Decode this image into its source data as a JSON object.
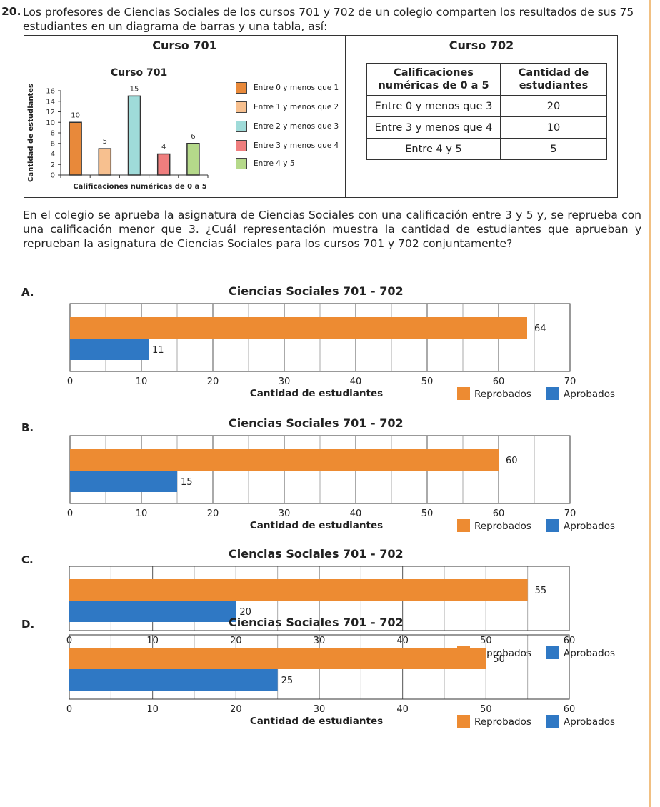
{
  "question": {
    "number": "20.",
    "intro": "Los profesores de Ciencias Sociales de los cursos 701 y 702 de un colegio comparten los resultados de sus 75 estudiantes en un diagrama de barras y una tabla, así:",
    "paragraph": "En el colegio se aprueba la asignatura de Ciencias Sociales con una calificación entre 3 y 5 y, se reprueba con una calificación menor que 3. ¿Cuál representación muestra la cantidad de estudiantes que aprueban y reprueban la asignatura de Ciencias Sociales para los cursos 701 y 702 conjuntamente?"
  },
  "curso701": {
    "header": "Curso 701",
    "legend": [
      {
        "label": "Entre 0 y menos que 1",
        "color": "#e8893a"
      },
      {
        "label": "Entre 1 y menos que 2",
        "color": "#f7c08f"
      },
      {
        "label": "Entre 2 y menos que 3",
        "color": "#9fdbd9"
      },
      {
        "label": "Entre 3 y menos que 4",
        "color": "#ef7e7e"
      },
      {
        "label": "Entre 4 y 5",
        "color": "#b5d98a"
      }
    ]
  },
  "curso702": {
    "header": "Curso 702",
    "col1": "Calificaciones numéricas de 0 a 5",
    "col2": "Cantidad de estudiantes",
    "rows": [
      {
        "range": "Entre 0 y menos que 3",
        "count": "20"
      },
      {
        "range": "Entre 3 y menos que 4",
        "count": "10"
      },
      {
        "range": "Entre 4 y 5",
        "count": "5"
      }
    ]
  },
  "legend_labels": {
    "reprobados": "Reprobados",
    "aprobados": "Aprobados"
  },
  "colors": {
    "reprobados": "#ed8b32",
    "aprobados": "#2f78c4"
  },
  "chart_data": [
    {
      "type": "bar",
      "title": "Curso 701",
      "xlabel": "Calificaciones numéricas de 0 a 5",
      "ylabel": "Cantidad de estudiantes",
      "categories": [
        "Entre 0 y menos que 1",
        "Entre 1 y menos que 2",
        "Entre 2 y menos que 3",
        "Entre 3 y menos que 4",
        "Entre 4 y 5"
      ],
      "values": [
        10,
        5,
        15,
        4,
        6
      ],
      "ylim": [
        0,
        16
      ],
      "yticks": [
        0,
        2,
        4,
        6,
        8,
        10,
        12,
        14,
        16
      ]
    },
    {
      "option": "A.",
      "type": "bar",
      "orientation": "horizontal",
      "title": "Ciencias Sociales 701 - 702",
      "xlabel": "Cantidad de estudiantes",
      "series": [
        {
          "name": "Reprobados",
          "value": 64
        },
        {
          "name": "Aprobados",
          "value": 11
        }
      ],
      "xlim": [
        0,
        70
      ],
      "xticks": [
        0,
        10,
        20,
        30,
        40,
        50,
        60,
        70
      ]
    },
    {
      "option": "B.",
      "type": "bar",
      "orientation": "horizontal",
      "title": "Ciencias Sociales 701 - 702",
      "xlabel": "Cantidad de estudiantes",
      "series": [
        {
          "name": "Reprobados",
          "value": 60
        },
        {
          "name": "Aprobados",
          "value": 15
        }
      ],
      "xlim": [
        0,
        70
      ],
      "xticks": [
        0,
        10,
        20,
        30,
        40,
        50,
        60,
        70
      ]
    },
    {
      "option": "C.",
      "type": "bar",
      "orientation": "horizontal",
      "title": "Ciencias Sociales 701 - 702",
      "xlabel": "Cantidad de estudiantes",
      "series": [
        {
          "name": "Reprobados",
          "value": 55
        },
        {
          "name": "Aprobados",
          "value": 20
        }
      ],
      "xlim": [
        0,
        60
      ],
      "xticks": [
        0,
        10,
        20,
        30,
        40,
        50,
        60
      ]
    },
    {
      "option": "D.",
      "type": "bar",
      "orientation": "horizontal",
      "title": "Ciencias Sociales 701 - 702",
      "xlabel": "Cantidad de estudiantes",
      "series": [
        {
          "name": "Reprobados",
          "value": 50
        },
        {
          "name": "Aprobados",
          "value": 25
        }
      ],
      "xlim": [
        0,
        60
      ],
      "xticks": [
        0,
        10,
        20,
        30,
        40,
        50,
        60
      ]
    }
  ]
}
